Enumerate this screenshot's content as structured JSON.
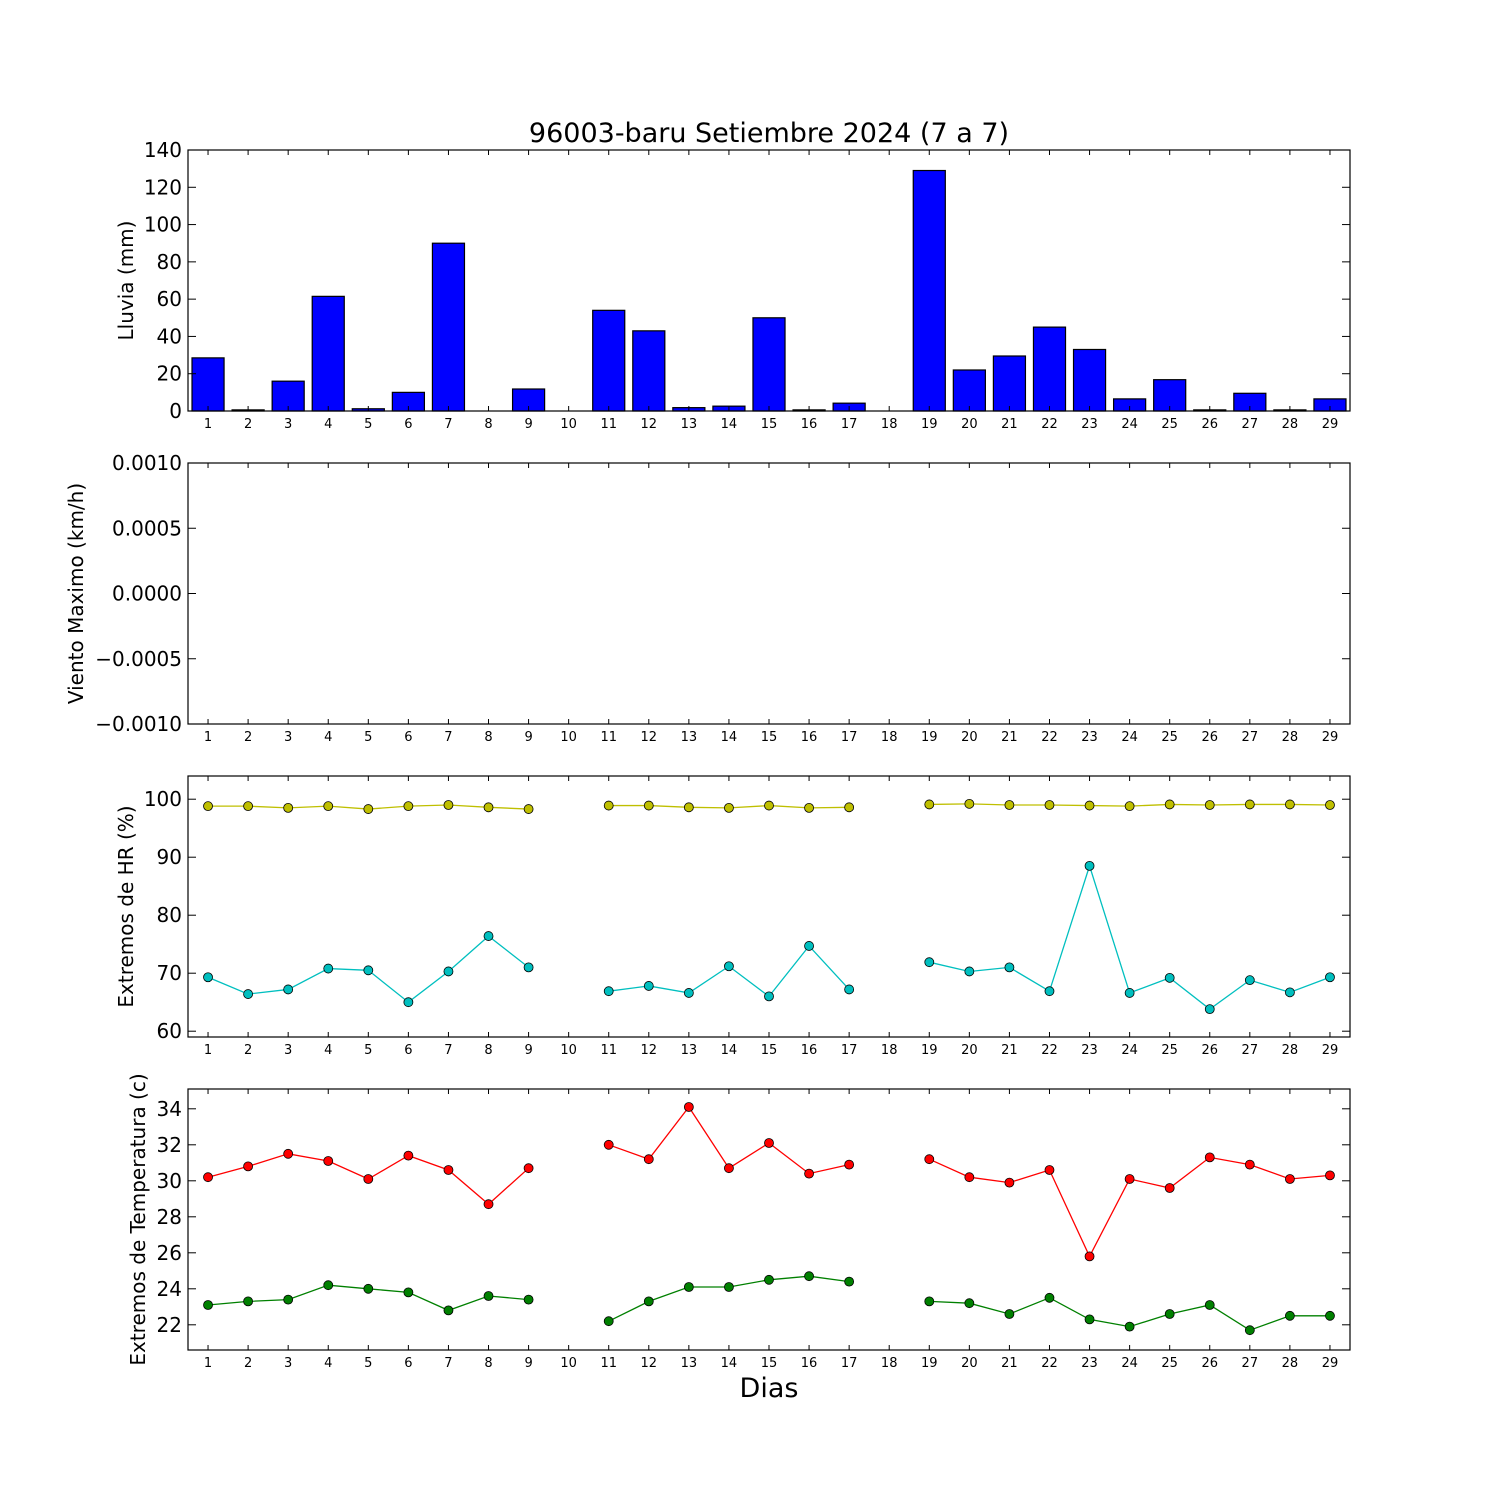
{
  "chart_data": [
    {
      "type": "bar",
      "title": "96003-baru Setiembre 2024  (7 a 7)",
      "xlabel": "",
      "ylabel": "Lluvia (mm)",
      "ylim": [
        0,
        140
      ],
      "yticks": [
        "0",
        "20",
        "40",
        "60",
        "80",
        "100",
        "120",
        "140"
      ],
      "grid": false,
      "x": [
        1,
        2,
        3,
        4,
        5,
        6,
        7,
        8,
        9,
        10,
        11,
        12,
        13,
        14,
        15,
        16,
        17,
        18,
        19,
        20,
        21,
        22,
        23,
        24,
        25,
        26,
        27,
        28,
        29
      ],
      "values": [
        28.5,
        0.6,
        16,
        61.5,
        1.2,
        10,
        90,
        0,
        11.8,
        0,
        54,
        43,
        1.8,
        2.6,
        50,
        0.6,
        4.2,
        0,
        129,
        22,
        29.5,
        45,
        33,
        6.5,
        16.8,
        0.6,
        9.5,
        0.6,
        6.5
      ],
      "color": "#0000ff"
    },
    {
      "type": "line",
      "title": "",
      "xlabel": "",
      "ylabel": "Viento Maximo (km/h)",
      "ylim": [
        -0.001,
        0.001
      ],
      "yticks": [
        "−0.0010",
        "−0.0005",
        "0.0000",
        "0.0005",
        "0.0010"
      ],
      "grid": false,
      "x": [
        1,
        2,
        3,
        4,
        5,
        6,
        7,
        8,
        9,
        10,
        11,
        12,
        13,
        14,
        15,
        16,
        17,
        18,
        19,
        20,
        21,
        22,
        23,
        24,
        25,
        26,
        27,
        28,
        29
      ],
      "series": []
    },
    {
      "type": "line",
      "title": "",
      "xlabel": "",
      "ylabel": "Extremos de HR (%)",
      "ylim": [
        59,
        104
      ],
      "yticks": [
        "60",
        "70",
        "80",
        "90",
        "100"
      ],
      "grid": false,
      "x": [
        1,
        2,
        3,
        4,
        5,
        6,
        7,
        8,
        9,
        10,
        11,
        12,
        13,
        14,
        15,
        16,
        17,
        18,
        19,
        20,
        21,
        22,
        23,
        24,
        25,
        26,
        27,
        28,
        29
      ],
      "series": [
        {
          "color": "#bfbf00",
          "values": [
            98.8,
            98.8,
            98.5,
            98.8,
            98.3,
            98.8,
            99.0,
            98.6,
            98.3,
            null,
            98.9,
            98.9,
            98.6,
            98.5,
            98.9,
            98.5,
            98.6,
            null,
            99.1,
            99.2,
            99.0,
            99.0,
            98.9,
            98.8,
            99.1,
            99.0,
            99.1,
            99.1,
            99.0
          ]
        },
        {
          "color": "#00bfbf",
          "values": [
            69.3,
            66.4,
            67.2,
            70.8,
            70.5,
            65.0,
            70.3,
            76.4,
            71.0,
            null,
            66.9,
            67.8,
            66.6,
            71.2,
            66.0,
            74.7,
            67.2,
            null,
            71.9,
            70.3,
            71.0,
            66.9,
            88.5,
            66.6,
            69.2,
            63.8,
            68.8,
            66.7,
            69.3
          ]
        }
      ]
    },
    {
      "type": "line",
      "title": "",
      "xlabel": "Dias",
      "ylabel": "Extremos de Temperatura (c)",
      "ylim": [
        20.6,
        35.1
      ],
      "yticks": [
        "22",
        "24",
        "26",
        "28",
        "30",
        "32",
        "34"
      ],
      "grid": false,
      "x": [
        1,
        2,
        3,
        4,
        5,
        6,
        7,
        8,
        9,
        10,
        11,
        12,
        13,
        14,
        15,
        16,
        17,
        18,
        19,
        20,
        21,
        22,
        23,
        24,
        25,
        26,
        27,
        28,
        29
      ],
      "series": [
        {
          "color": "#ff0000",
          "values": [
            30.2,
            30.8,
            31.5,
            31.1,
            30.1,
            31.4,
            30.6,
            28.7,
            30.7,
            null,
            32.0,
            31.2,
            34.1,
            30.7,
            32.1,
            30.4,
            30.9,
            null,
            31.2,
            30.2,
            29.9,
            30.6,
            25.8,
            30.1,
            29.6,
            31.3,
            30.9,
            30.1,
            30.3
          ]
        },
        {
          "color": "#008000",
          "values": [
            23.1,
            23.3,
            23.4,
            24.2,
            24.0,
            23.8,
            22.8,
            23.6,
            23.4,
            null,
            22.2,
            23.3,
            24.1,
            24.1,
            24.5,
            24.7,
            24.4,
            null,
            23.3,
            23.2,
            22.6,
            23.5,
            22.3,
            21.9,
            22.6,
            23.1,
            21.7,
            22.5,
            22.5
          ]
        }
      ]
    }
  ]
}
